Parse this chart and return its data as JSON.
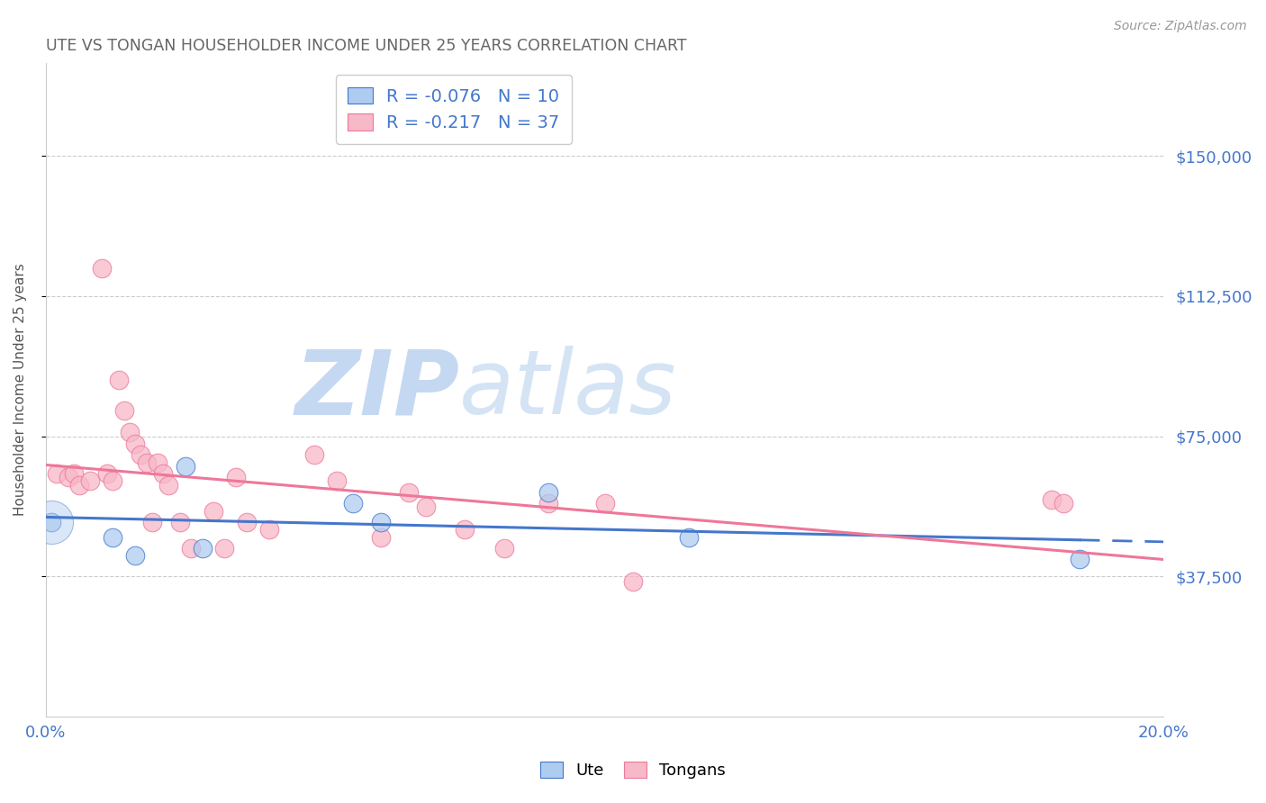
{
  "title": "UTE VS TONGAN HOUSEHOLDER INCOME UNDER 25 YEARS CORRELATION CHART",
  "source": "Source: ZipAtlas.com",
  "ylabel": "Householder Income Under 25 years",
  "xlim": [
    0,
    0.2
  ],
  "ylim": [
    0,
    175000
  ],
  "yticks": [
    37500,
    75000,
    112500,
    150000
  ],
  "ytick_labels": [
    "$37,500",
    "$75,000",
    "$112,500",
    "$150,000"
  ],
  "xticks": [
    0.0,
    0.05,
    0.1,
    0.15,
    0.2
  ],
  "xtick_labels": [
    "0.0%",
    "",
    "",
    "",
    "20.0%"
  ],
  "R_ute": -0.076,
  "N_ute": 10,
  "R_tongan": -0.217,
  "N_tongan": 37,
  "blue_color": "#AECBF0",
  "pink_color": "#F7B8C8",
  "blue_line_color": "#4477CC",
  "pink_line_color": "#EE7799",
  "label_color": "#4477CC",
  "watermark_zip_color": "#BDD0EE",
  "watermark_atlas_color": "#C8D8F0",
  "ute_x": [
    0.001,
    0.012,
    0.016,
    0.025,
    0.028,
    0.055,
    0.06,
    0.09,
    0.115,
    0.185
  ],
  "ute_y": [
    52000,
    48000,
    43000,
    67000,
    45000,
    57000,
    52000,
    60000,
    48000,
    42000
  ],
  "tongan_x": [
    0.002,
    0.004,
    0.005,
    0.006,
    0.008,
    0.01,
    0.011,
    0.012,
    0.013,
    0.014,
    0.015,
    0.016,
    0.017,
    0.018,
    0.019,
    0.02,
    0.021,
    0.022,
    0.024,
    0.026,
    0.03,
    0.032,
    0.034,
    0.036,
    0.04,
    0.048,
    0.052,
    0.06,
    0.065,
    0.068,
    0.075,
    0.082,
    0.09,
    0.1,
    0.105,
    0.18,
    0.182
  ],
  "tongan_y": [
    65000,
    64000,
    65000,
    62000,
    63000,
    120000,
    65000,
    63000,
    90000,
    82000,
    76000,
    73000,
    70000,
    68000,
    52000,
    68000,
    65000,
    62000,
    52000,
    45000,
    55000,
    45000,
    64000,
    52000,
    50000,
    70000,
    63000,
    48000,
    60000,
    56000,
    50000,
    45000,
    57000,
    57000,
    36000,
    58000,
    57000
  ],
  "background_color": "#ffffff"
}
